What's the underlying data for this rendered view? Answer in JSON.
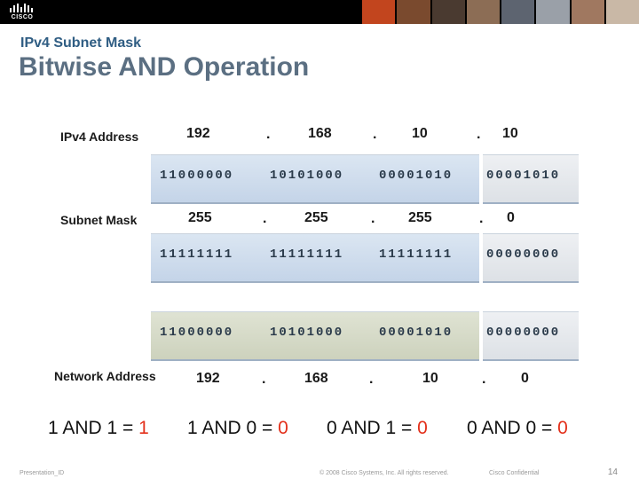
{
  "header": {
    "logo_text": "CISCO",
    "subtitle": "IPv4 Subnet Mask",
    "title": "Bitwise AND Operation"
  },
  "rows": {
    "ipv4": {
      "label": "IPv4 Address",
      "decimal": [
        "192",
        "168",
        "10",
        "10"
      ],
      "binary": [
        "11000000",
        "10101000",
        "00001010",
        "00001010"
      ]
    },
    "mask": {
      "label": "Subnet Mask",
      "decimal": [
        "255",
        "255",
        "255",
        "0"
      ],
      "binary": [
        "11111111",
        "11111111",
        "11111111",
        "00000000"
      ]
    },
    "network": {
      "label": "Network Address",
      "decimal": [
        "192",
        "168",
        "10",
        "0"
      ],
      "binary": [
        "11000000",
        "10101000",
        "00001010",
        "00000000"
      ]
    },
    "dot": "."
  },
  "rules": [
    {
      "expr": "1 AND 1 = ",
      "result": "1"
    },
    {
      "expr": "1 AND 0 = ",
      "result": "0"
    },
    {
      "expr": "0 AND 1 = ",
      "result": "0"
    },
    {
      "expr": "0 AND 0 = ",
      "result": "0"
    }
  ],
  "footer": {
    "presentation_id": "Presentation_ID",
    "copyright": "© 2008 Cisco Systems, Inc. All rights reserved.",
    "confidential": "Cisco Confidential",
    "page": "14"
  },
  "colors": {
    "title": "#5b6f82",
    "subtitle": "#2f5d83",
    "result": "#e3301b"
  }
}
